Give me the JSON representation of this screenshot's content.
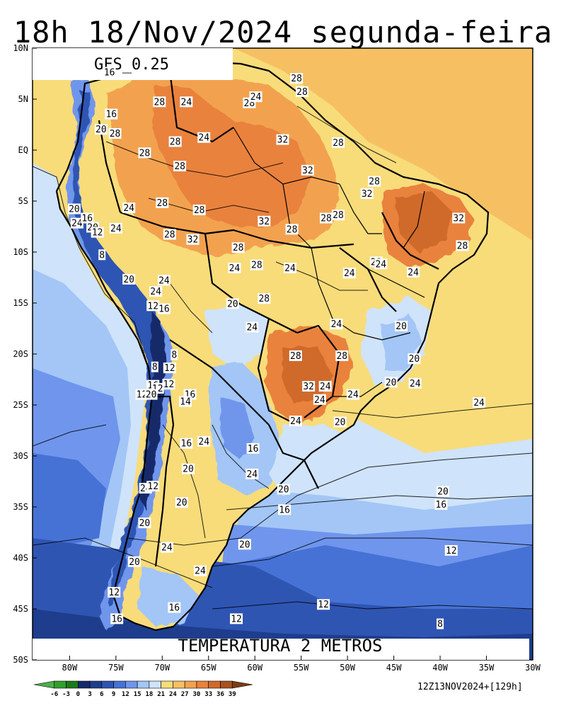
{
  "title": "18h 18/Nov/2024 segunda-feira",
  "model_label": "GFS_0.25",
  "field_label": "TEMPERATURA 2 METROS",
  "run_info": "12Z13NOV2024+[129h]",
  "lat_ticks": [
    "10N",
    "5N",
    "EQ",
    "5S",
    "10S",
    "15S",
    "20S",
    "25S",
    "30S",
    "35S",
    "40S",
    "45S",
    "50S"
  ],
  "lon_ticks": [
    "80W",
    "75W",
    "70W",
    "65W",
    "60W",
    "55W",
    "50W",
    "45W",
    "40W",
    "35W",
    "30W"
  ],
  "colorbar": {
    "labels": [
      "-6",
      "-3",
      "0",
      "3",
      "6",
      "9",
      "12",
      "15",
      "18",
      "21",
      "24",
      "27",
      "30",
      "33",
      "36",
      "39"
    ],
    "colors": [
      "#4daf4a",
      "#33a02c",
      "#1b7a1b",
      "#162a6b",
      "#1e3d8c",
      "#2f55b3",
      "#4672d6",
      "#6f96ec",
      "#a3c6f6",
      "#cfe3fa",
      "#f8dc7a",
      "#f6c062",
      "#f2a250",
      "#e9823c",
      "#cf6a2c",
      "#a8521f",
      "#7d3b14"
    ]
  },
  "contour_labels": [
    {
      "t": "16",
      "x": -75.7,
      "y": 7.6
    },
    {
      "t": "28",
      "x": -70.3,
      "y": 4.7
    },
    {
      "t": "24",
      "x": -67.4,
      "y": 4.7
    },
    {
      "t": "28",
      "x": -60.6,
      "y": 4.6
    },
    {
      "t": "24",
      "x": -59.9,
      "y": 5.2
    },
    {
      "t": "28",
      "x": -55.5,
      "y": 7.0
    },
    {
      "t": "28",
      "x": -54.9,
      "y": 5.7
    },
    {
      "t": "16",
      "x": -75.5,
      "y": 3.5
    },
    {
      "t": "20",
      "x": -76.6,
      "y": 2.0
    },
    {
      "t": "28",
      "x": -75.1,
      "y": 1.6
    },
    {
      "t": "28",
      "x": -68.6,
      "y": 0.8
    },
    {
      "t": "24",
      "x": -65.5,
      "y": 1.2
    },
    {
      "t": "28",
      "x": -71.9,
      "y": -0.3
    },
    {
      "t": "32",
      "x": -57.0,
      "y": 1.0
    },
    {
      "t": "28",
      "x": -51.0,
      "y": 0.7
    },
    {
      "t": "28",
      "x": -68.1,
      "y": -1.6
    },
    {
      "t": "32",
      "x": -54.3,
      "y": -2.0
    },
    {
      "t": "28",
      "x": -47.1,
      "y": -3.1
    },
    {
      "t": "32",
      "x": -47.9,
      "y": -4.3
    },
    {
      "t": "20",
      "x": -79.5,
      "y": -5.8
    },
    {
      "t": "24",
      "x": -73.6,
      "y": -5.7
    },
    {
      "t": "28",
      "x": -70.0,
      "y": -5.2
    },
    {
      "t": "28",
      "x": -66.0,
      "y": -5.9
    },
    {
      "t": "28",
      "x": -51.0,
      "y": -6.4
    },
    {
      "t": "28",
      "x": -52.3,
      "y": -6.7
    },
    {
      "t": "24",
      "x": -79.2,
      "y": -7.2
    },
    {
      "t": "16",
      "x": -78.1,
      "y": -6.7
    },
    {
      "t": "20",
      "x": -77.5,
      "y": -7.6
    },
    {
      "t": "12",
      "x": -77.0,
      "y": -8.1
    },
    {
      "t": "24",
      "x": -75.0,
      "y": -7.7
    },
    {
      "t": "32",
      "x": -59.0,
      "y": -7.0
    },
    {
      "t": "28",
      "x": -56.0,
      "y": -7.8
    },
    {
      "t": "32",
      "x": -38.0,
      "y": -6.7
    },
    {
      "t": "28",
      "x": -69.2,
      "y": -8.3
    },
    {
      "t": "32",
      "x": -66.7,
      "y": -8.8
    },
    {
      "t": "28",
      "x": -61.8,
      "y": -9.6
    },
    {
      "t": "28",
      "x": -37.6,
      "y": -9.4
    },
    {
      "t": "8",
      "x": -76.5,
      "y": -10.3
    },
    {
      "t": "24",
      "x": -62.2,
      "y": -11.6
    },
    {
      "t": "28",
      "x": -59.8,
      "y": -11.3
    },
    {
      "t": "24",
      "x": -56.2,
      "y": -11.6
    },
    {
      "t": "24",
      "x": -49.8,
      "y": -12.1
    },
    {
      "t": "28",
      "x": -46.9,
      "y": -11.0
    },
    {
      "t": "24",
      "x": -46.4,
      "y": -11.2
    },
    {
      "t": "24",
      "x": -42.9,
      "y": -12.0
    },
    {
      "t": "20",
      "x": -73.6,
      "y": -12.7
    },
    {
      "t": "24",
      "x": -69.8,
      "y": -12.8
    },
    {
      "t": "24",
      "x": -70.7,
      "y": -13.9
    },
    {
      "t": "28",
      "x": -59.0,
      "y": -14.6
    },
    {
      "t": "12",
      "x": -71.0,
      "y": -15.3
    },
    {
      "t": "16",
      "x": -69.8,
      "y": -15.6
    },
    {
      "t": "20",
      "x": -62.4,
      "y": -15.1
    },
    {
      "t": "24",
      "x": -60.3,
      "y": -17.4
    },
    {
      "t": "24",
      "x": -51.2,
      "y": -17.1
    },
    {
      "t": "20",
      "x": -44.2,
      "y": -17.3
    },
    {
      "t": "8",
      "x": -68.7,
      "y": -20.1
    },
    {
      "t": "28",
      "x": -55.6,
      "y": -20.2
    },
    {
      "t": "28",
      "x": -50.6,
      "y": -20.2
    },
    {
      "t": "20",
      "x": -42.8,
      "y": -20.5
    },
    {
      "t": "8",
      "x": -70.8,
      "y": -21.3
    },
    {
      "t": "12",
      "x": -69.2,
      "y": -21.4
    },
    {
      "t": "20",
      "x": -45.3,
      "y": -22.8
    },
    {
      "t": "24",
      "x": -42.7,
      "y": -22.9
    },
    {
      "t": "16",
      "x": -71.0,
      "y": -23.1
    },
    {
      "t": "12",
      "x": -69.3,
      "y": -23.0
    },
    {
      "t": "12",
      "x": -70.5,
      "y": -23.4
    },
    {
      "t": "32",
      "x": -54.2,
      "y": -23.2
    },
    {
      "t": "24",
      "x": -52.4,
      "y": -23.2
    },
    {
      "t": "12",
      "x": -72.2,
      "y": -24.0
    },
    {
      "t": "20",
      "x": -71.2,
      "y": -24.0
    },
    {
      "t": "16",
      "x": -67.0,
      "y": -24.0
    },
    {
      "t": "24",
      "x": -49.4,
      "y": -24.0
    },
    {
      "t": "14",
      "x": -67.5,
      "y": -24.7
    },
    {
      "t": "24",
      "x": -53.0,
      "y": -24.5
    },
    {
      "t": "24",
      "x": -35.8,
      "y": -24.8
    },
    {
      "t": "24",
      "x": -55.6,
      "y": -26.6
    },
    {
      "t": "20",
      "x": -50.8,
      "y": -26.7
    },
    {
      "t": "16",
      "x": -67.4,
      "y": -28.8
    },
    {
      "t": "24",
      "x": -65.5,
      "y": -28.6
    },
    {
      "t": "16",
      "x": -60.2,
      "y": -29.3
    },
    {
      "t": "20",
      "x": -67.2,
      "y": -31.3
    },
    {
      "t": "24",
      "x": -60.3,
      "y": -31.8
    },
    {
      "t": "24",
      "x": -71.8,
      "y": -33.2
    },
    {
      "t": "12",
      "x": -71.0,
      "y": -33.0
    },
    {
      "t": "20",
      "x": -56.9,
      "y": -33.3
    },
    {
      "t": "20",
      "x": -39.7,
      "y": -33.5
    },
    {
      "t": "20",
      "x": -67.9,
      "y": -34.6
    },
    {
      "t": "16",
      "x": -56.8,
      "y": -35.3
    },
    {
      "t": "16",
      "x": -39.9,
      "y": -34.8
    },
    {
      "t": "20",
      "x": -71.9,
      "y": -36.6
    },
    {
      "t": "20",
      "x": -61.1,
      "y": -38.7
    },
    {
      "t": "24",
      "x": -69.5,
      "y": -39.0
    },
    {
      "t": "12",
      "x": -38.8,
      "y": -39.3
    },
    {
      "t": "20",
      "x": -73.0,
      "y": -40.4
    },
    {
      "t": "24",
      "x": -65.9,
      "y": -41.3
    },
    {
      "t": "12",
      "x": -75.2,
      "y": -43.4
    },
    {
      "t": "12",
      "x": -52.6,
      "y": -44.6
    },
    {
      "t": "16",
      "x": -68.7,
      "y": -44.9
    },
    {
      "t": "16",
      "x": -74.9,
      "y": -46.0
    },
    {
      "t": "12",
      "x": -62.0,
      "y": -46.0
    },
    {
      "t": "8",
      "x": -40.0,
      "y": -46.5
    }
  ]
}
